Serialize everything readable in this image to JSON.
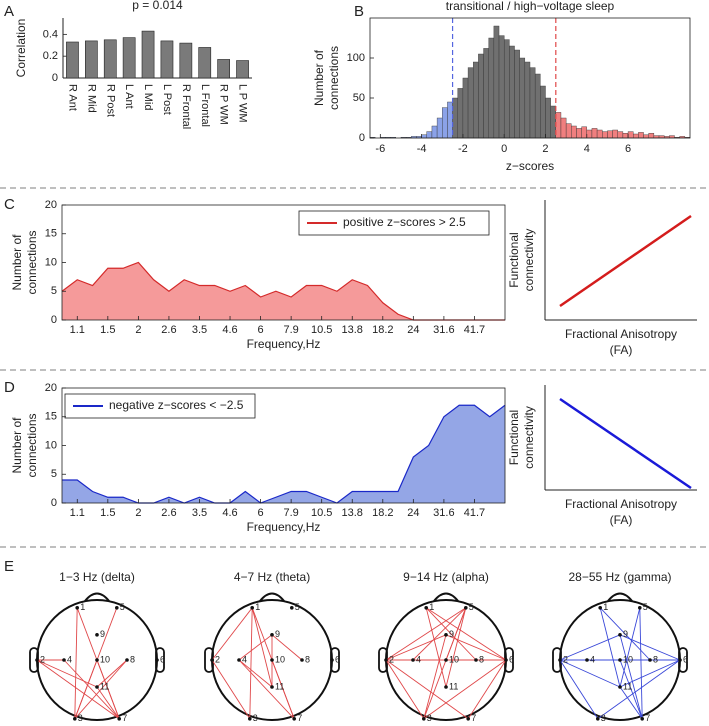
{
  "panel_labels": [
    "A",
    "B",
    "C",
    "D",
    "E"
  ],
  "chart_data": [
    {
      "type": "bar",
      "title": "p = 0.014",
      "y_label": [
        "Correlation"
      ],
      "categories": [
        "R Ant",
        "R Mid",
        "R Post",
        "L Ant",
        "L Mid",
        "L Post",
        "R Frontal",
        "L Frontal",
        "R P WM",
        "L P WM"
      ],
      "values": [
        0.33,
        0.34,
        0.35,
        0.37,
        0.43,
        0.34,
        0.32,
        0.28,
        0.17,
        0.16
      ],
      "color": "#7a7a7a",
      "ylim": [
        0,
        0.55
      ],
      "yticks": [
        0,
        0.2,
        0.4
      ]
    },
    {
      "type": "histogram",
      "title": "transitional / high−voltage sleep",
      "y_label": [
        "Number of",
        "connections"
      ],
      "x_label": "z−scores",
      "bins": [
        -6.5,
        -6.25,
        -6,
        -5.75,
        -5.5,
        -5.25,
        -5,
        -4.75,
        -4.5,
        -4.25,
        -4,
        -3.75,
        -3.5,
        -3.25,
        -3,
        -2.75,
        -2.5,
        -2.25,
        -2,
        -1.75,
        -1.5,
        -1.25,
        -1,
        -0.75,
        -0.5,
        -0.25,
        0,
        0.25,
        0.5,
        0.75,
        1,
        1.25,
        1.5,
        1.75,
        2,
        2.25,
        2.5,
        2.75,
        3,
        3.25,
        3.5,
        3.75,
        4,
        4.25,
        4.5,
        4.75,
        5,
        5.25,
        5.5,
        5.75,
        6,
        6.25,
        6.5,
        6.75,
        7,
        7.25,
        7.5,
        7.75,
        8,
        8.25,
        8.5,
        8.75,
        9
      ],
      "values": [
        1,
        0,
        1,
        1,
        1,
        0,
        1,
        1,
        2,
        2,
        4,
        8,
        15,
        25,
        38,
        45,
        50,
        62,
        75,
        88,
        95,
        105,
        112,
        125,
        140,
        128,
        123,
        115,
        110,
        100,
        95,
        88,
        80,
        65,
        50,
        40,
        32,
        25,
        18,
        15,
        12,
        14,
        10,
        12,
        10,
        8,
        9,
        10,
        8,
        6,
        8,
        5,
        7,
        4,
        6,
        3,
        3,
        2,
        3,
        1,
        2,
        1
      ],
      "color": "#707070",
      "low_color": "#8ba2e8",
      "high_color": "#f07f7f",
      "thresholds": [
        {
          "value": -2.5,
          "color": "#5566e0"
        },
        {
          "value": 2.5,
          "color": "#e04848"
        }
      ],
      "xlim": [
        -6.5,
        9
      ],
      "xticks": [
        -6,
        -4,
        -2,
        0,
        2,
        4,
        6
      ],
      "ylim": [
        0,
        150
      ],
      "yticks": [
        0,
        50,
        100
      ]
    },
    {
      "type": "area",
      "y_label": [
        "Number of",
        "connections"
      ],
      "x_label": "Frequency,Hz",
      "categories": [
        null,
        "1.1",
        null,
        "1.5",
        null,
        "2",
        null,
        "2.6",
        null,
        "3.5",
        null,
        "4.6",
        null,
        "6",
        null,
        "7.9",
        null,
        "10.5",
        null,
        "13.8",
        null,
        "18.2",
        null,
        "24",
        null,
        "31.6",
        null,
        "41.7",
        null,
        null
      ],
      "series": [
        {
          "name": "positive z−scores > 2.5",
          "color": "#d42a2a",
          "fill": "#f59a9a",
          "values": [
            5,
            7,
            6,
            9,
            9,
            10,
            7,
            5,
            7,
            6,
            6,
            5,
            6,
            4,
            5,
            4,
            6,
            6,
            5,
            7,
            6,
            3,
            1,
            0,
            0,
            0,
            0,
            0,
            0,
            0
          ]
        }
      ],
      "ylim": [
        0,
        20
      ],
      "yticks": [
        0,
        5,
        10,
        15,
        20
      ],
      "legend": "upper right"
    },
    {
      "type": "area",
      "y_label": [
        "Number of",
        "connections"
      ],
      "x_label": "Frequency,Hz",
      "categories": [
        null,
        "1.1",
        null,
        "1.5",
        null,
        "2",
        null,
        "2.6",
        null,
        "3.5",
        null,
        "4.6",
        null,
        "6",
        null,
        "7.9",
        null,
        "10.5",
        null,
        "13.8",
        null,
        "18.2",
        null,
        "24",
        null,
        "31.6",
        null,
        "41.7",
        null,
        null
      ],
      "series": [
        {
          "name": "negative z−scores < −2.5",
          "color": "#1a28c8",
          "fill": "#94a6e6",
          "values": [
            4,
            4,
            2,
            1,
            1,
            0,
            0,
            1,
            0,
            1,
            0,
            0,
            2,
            0,
            1,
            2,
            2,
            1,
            0,
            2,
            2,
            2,
            2,
            8,
            10,
            15,
            17,
            17,
            15,
            17
          ]
        }
      ],
      "ylim": [
        0,
        20
      ],
      "yticks": [
        0,
        5,
        10,
        15,
        20
      ],
      "legend": "upper left"
    }
  ],
  "schematics": [
    {
      "y_label": [
        "Functional",
        "connectivity"
      ],
      "x_label": [
        "Fractional Anisotropy",
        "(FA)"
      ],
      "color": "#d41c1c",
      "trend": "up"
    },
    {
      "y_label": [
        "Functional",
        "connectivity"
      ],
      "x_label": [
        "Fractional Anisotropy",
        "(FA)"
      ],
      "color": "#1a1ad8",
      "trend": "down"
    }
  ],
  "head_maps": {
    "nodes": [
      "1",
      "5",
      "9",
      "2",
      "4",
      "10",
      "8",
      "6",
      "11",
      "3",
      "7"
    ],
    "maps": [
      {
        "title": "1−3 Hz (delta)",
        "color": "#e0484a",
        "edges": [
          [
            1,
            7
          ],
          [
            1,
            3
          ],
          [
            2,
            4
          ],
          [
            2,
            7
          ],
          [
            2,
            11
          ],
          [
            4,
            7
          ],
          [
            10,
            3
          ],
          [
            8,
            3
          ],
          [
            8,
            11
          ],
          [
            11,
            7
          ],
          [
            5,
            3
          ],
          [
            10,
            7
          ]
        ]
      },
      {
        "title": "4−7 Hz (theta)",
        "color": "#e0484a",
        "edges": [
          [
            1,
            2
          ],
          [
            1,
            3
          ],
          [
            1,
            11
          ],
          [
            1,
            7
          ],
          [
            9,
            4
          ],
          [
            9,
            11
          ],
          [
            4,
            11
          ],
          [
            4,
            7
          ],
          [
            10,
            7
          ],
          [
            9,
            8
          ],
          [
            2,
            3
          ]
        ]
      },
      {
        "title": "9−14 Hz (alpha)",
        "color": "#e0484a",
        "edges": [
          [
            1,
            6
          ],
          [
            1,
            8
          ],
          [
            1,
            11
          ],
          [
            5,
            2
          ],
          [
            5,
            4
          ],
          [
            5,
            10
          ],
          [
            5,
            11
          ],
          [
            5,
            3
          ],
          [
            9,
            2
          ],
          [
            9,
            6
          ],
          [
            2,
            6
          ],
          [
            2,
            3
          ],
          [
            2,
            7
          ],
          [
            6,
            7
          ],
          [
            6,
            3
          ],
          [
            9,
            3
          ]
        ]
      },
      {
        "title": "28−55 Hz (gamma)",
        "color": "#3a48d8",
        "edges": [
          [
            1,
            11
          ],
          [
            1,
            8
          ],
          [
            5,
            7
          ],
          [
            5,
            11
          ],
          [
            9,
            6
          ],
          [
            9,
            2
          ],
          [
            9,
            7
          ],
          [
            2,
            6
          ],
          [
            2,
            3
          ],
          [
            2,
            11
          ],
          [
            6,
            11
          ],
          [
            6,
            3
          ],
          [
            10,
            7
          ],
          [
            11,
            7
          ],
          [
            8,
            6
          ]
        ]
      }
    ]
  }
}
